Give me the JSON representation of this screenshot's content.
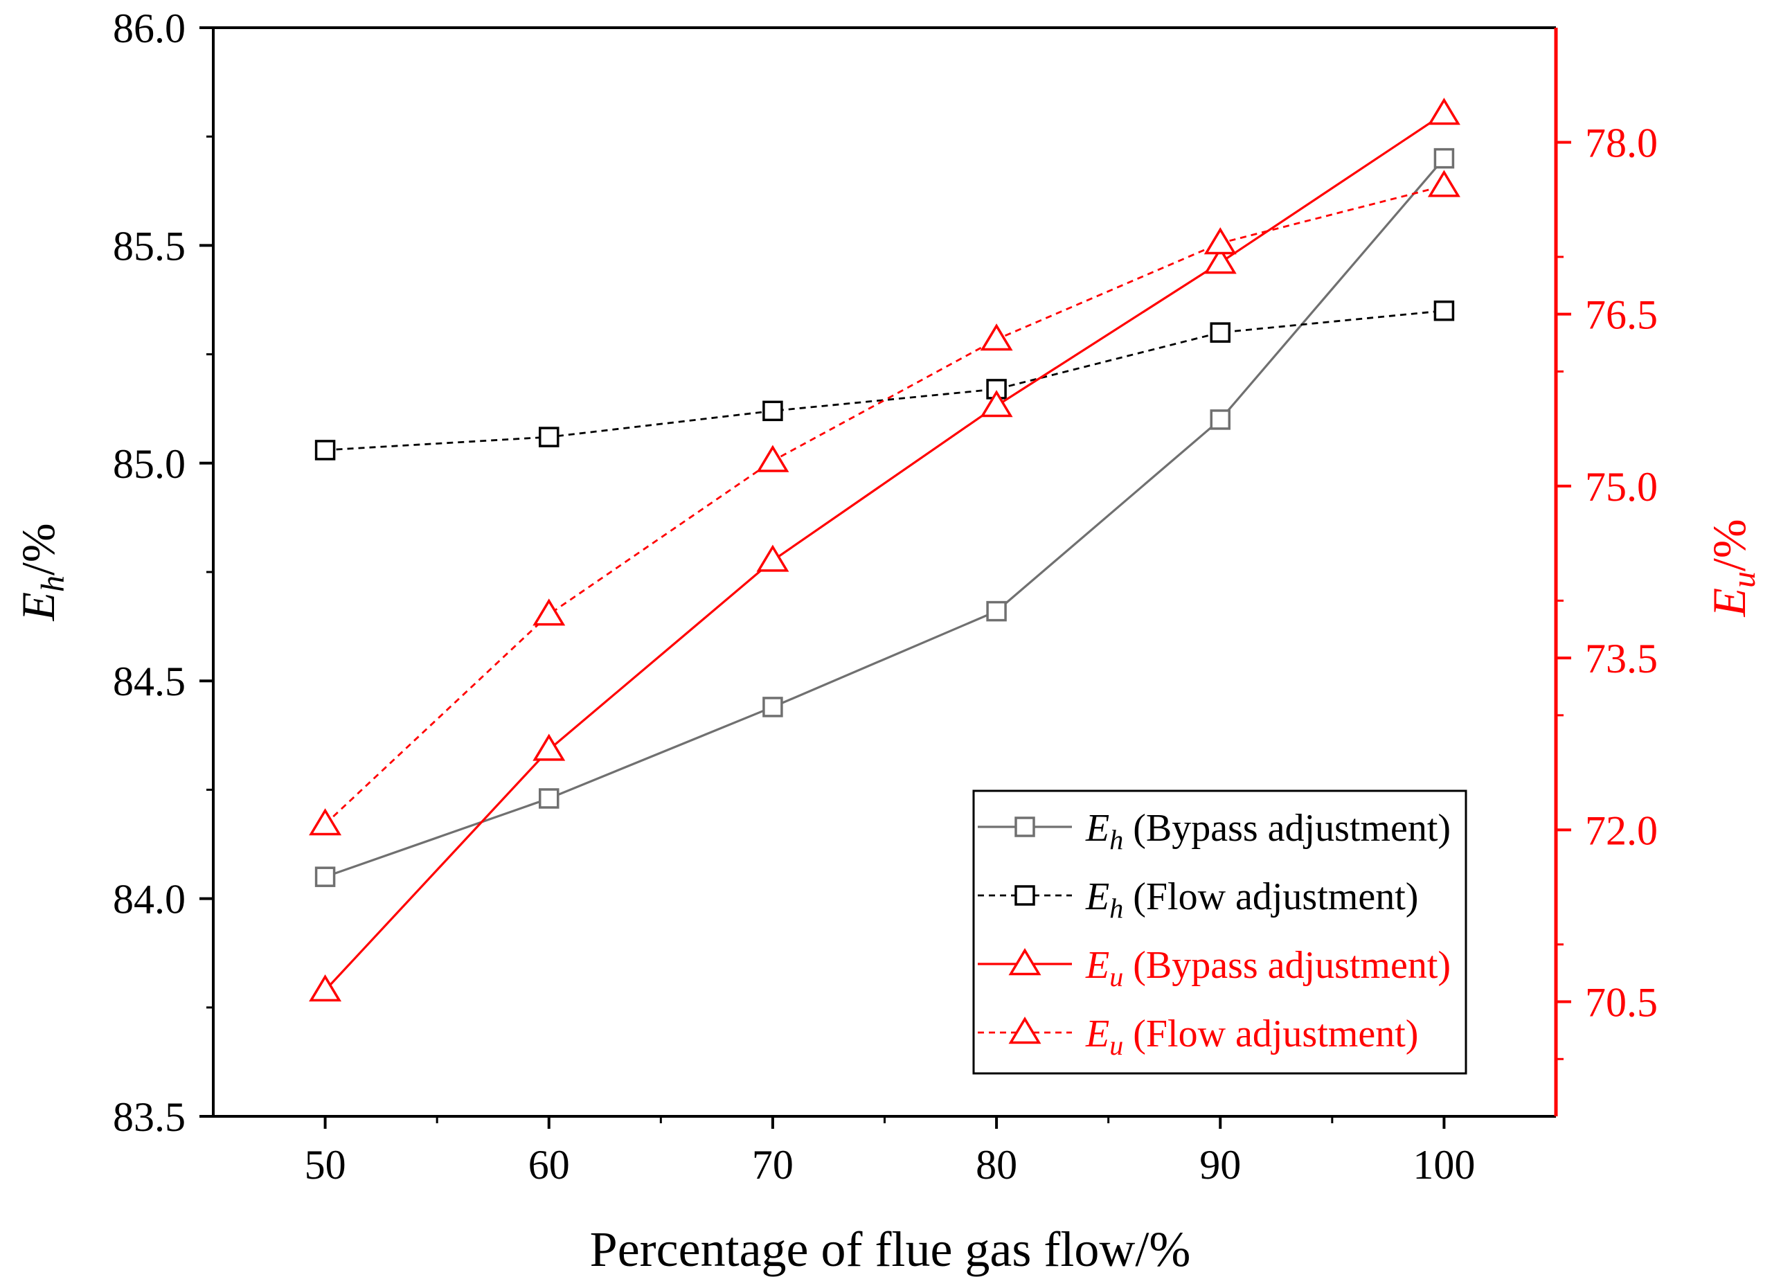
{
  "chart_data": {
    "type": "line",
    "title": "",
    "xlabel": "Percentage of flue gas flow/%",
    "x": [
      50,
      60,
      70,
      80,
      90,
      100
    ],
    "x_ticks": [
      "50",
      "60",
      "70",
      "80",
      "90",
      "100"
    ],
    "xlim": [
      45,
      105
    ],
    "left_axis": {
      "label_main": "E",
      "label_sub": "h",
      "label_suffix": "/%",
      "ylim": [
        83.5,
        86.0
      ],
      "ticks": [
        "83.5",
        "84.0",
        "84.5",
        "85.0",
        "85.5",
        "86.0"
      ],
      "color": "#000000"
    },
    "right_axis": {
      "label_main": "E",
      "label_sub": "u",
      "label_suffix": "/%",
      "ylim": [
        69.5,
        79.0
      ],
      "ticks": [
        "70.5",
        "72.0",
        "73.5",
        "75.0",
        "76.5",
        "78.0"
      ],
      "color": "#ff0000"
    },
    "series": [
      {
        "name_main": "E",
        "name_sub": "h",
        "name_rest": " (Bypass adjustment)",
        "axis": "left",
        "values": [
          84.05,
          84.23,
          84.44,
          84.66,
          85.1,
          85.7
        ],
        "color": "#707070",
        "text_color": "#000000",
        "marker": "square",
        "dashed": false
      },
      {
        "name_main": "E",
        "name_sub": "h",
        "name_rest": " (Flow adjustment)",
        "axis": "left",
        "values": [
          85.03,
          85.06,
          85.12,
          85.17,
          85.3,
          85.35
        ],
        "color": "#000000",
        "text_color": "#000000",
        "marker": "square",
        "dashed": true
      },
      {
        "name_main": "E",
        "name_sub": "u",
        "name_rest": " (Bypass adjustment)",
        "axis": "right",
        "values": [
          70.6,
          72.7,
          74.35,
          75.7,
          76.95,
          78.25
        ],
        "color": "#ff0000",
        "text_color": "#ff0000",
        "marker": "triangle",
        "dashed": false
      },
      {
        "name_main": "E",
        "name_sub": "u",
        "name_rest": " (Flow adjustment)",
        "axis": "right",
        "values": [
          72.05,
          73.88,
          75.22,
          76.28,
          77.12,
          77.62
        ],
        "color": "#ff0000",
        "text_color": "#ff0000",
        "marker": "triangle",
        "dashed": true
      }
    ],
    "legend_position": "lower-right",
    "grid": false
  }
}
